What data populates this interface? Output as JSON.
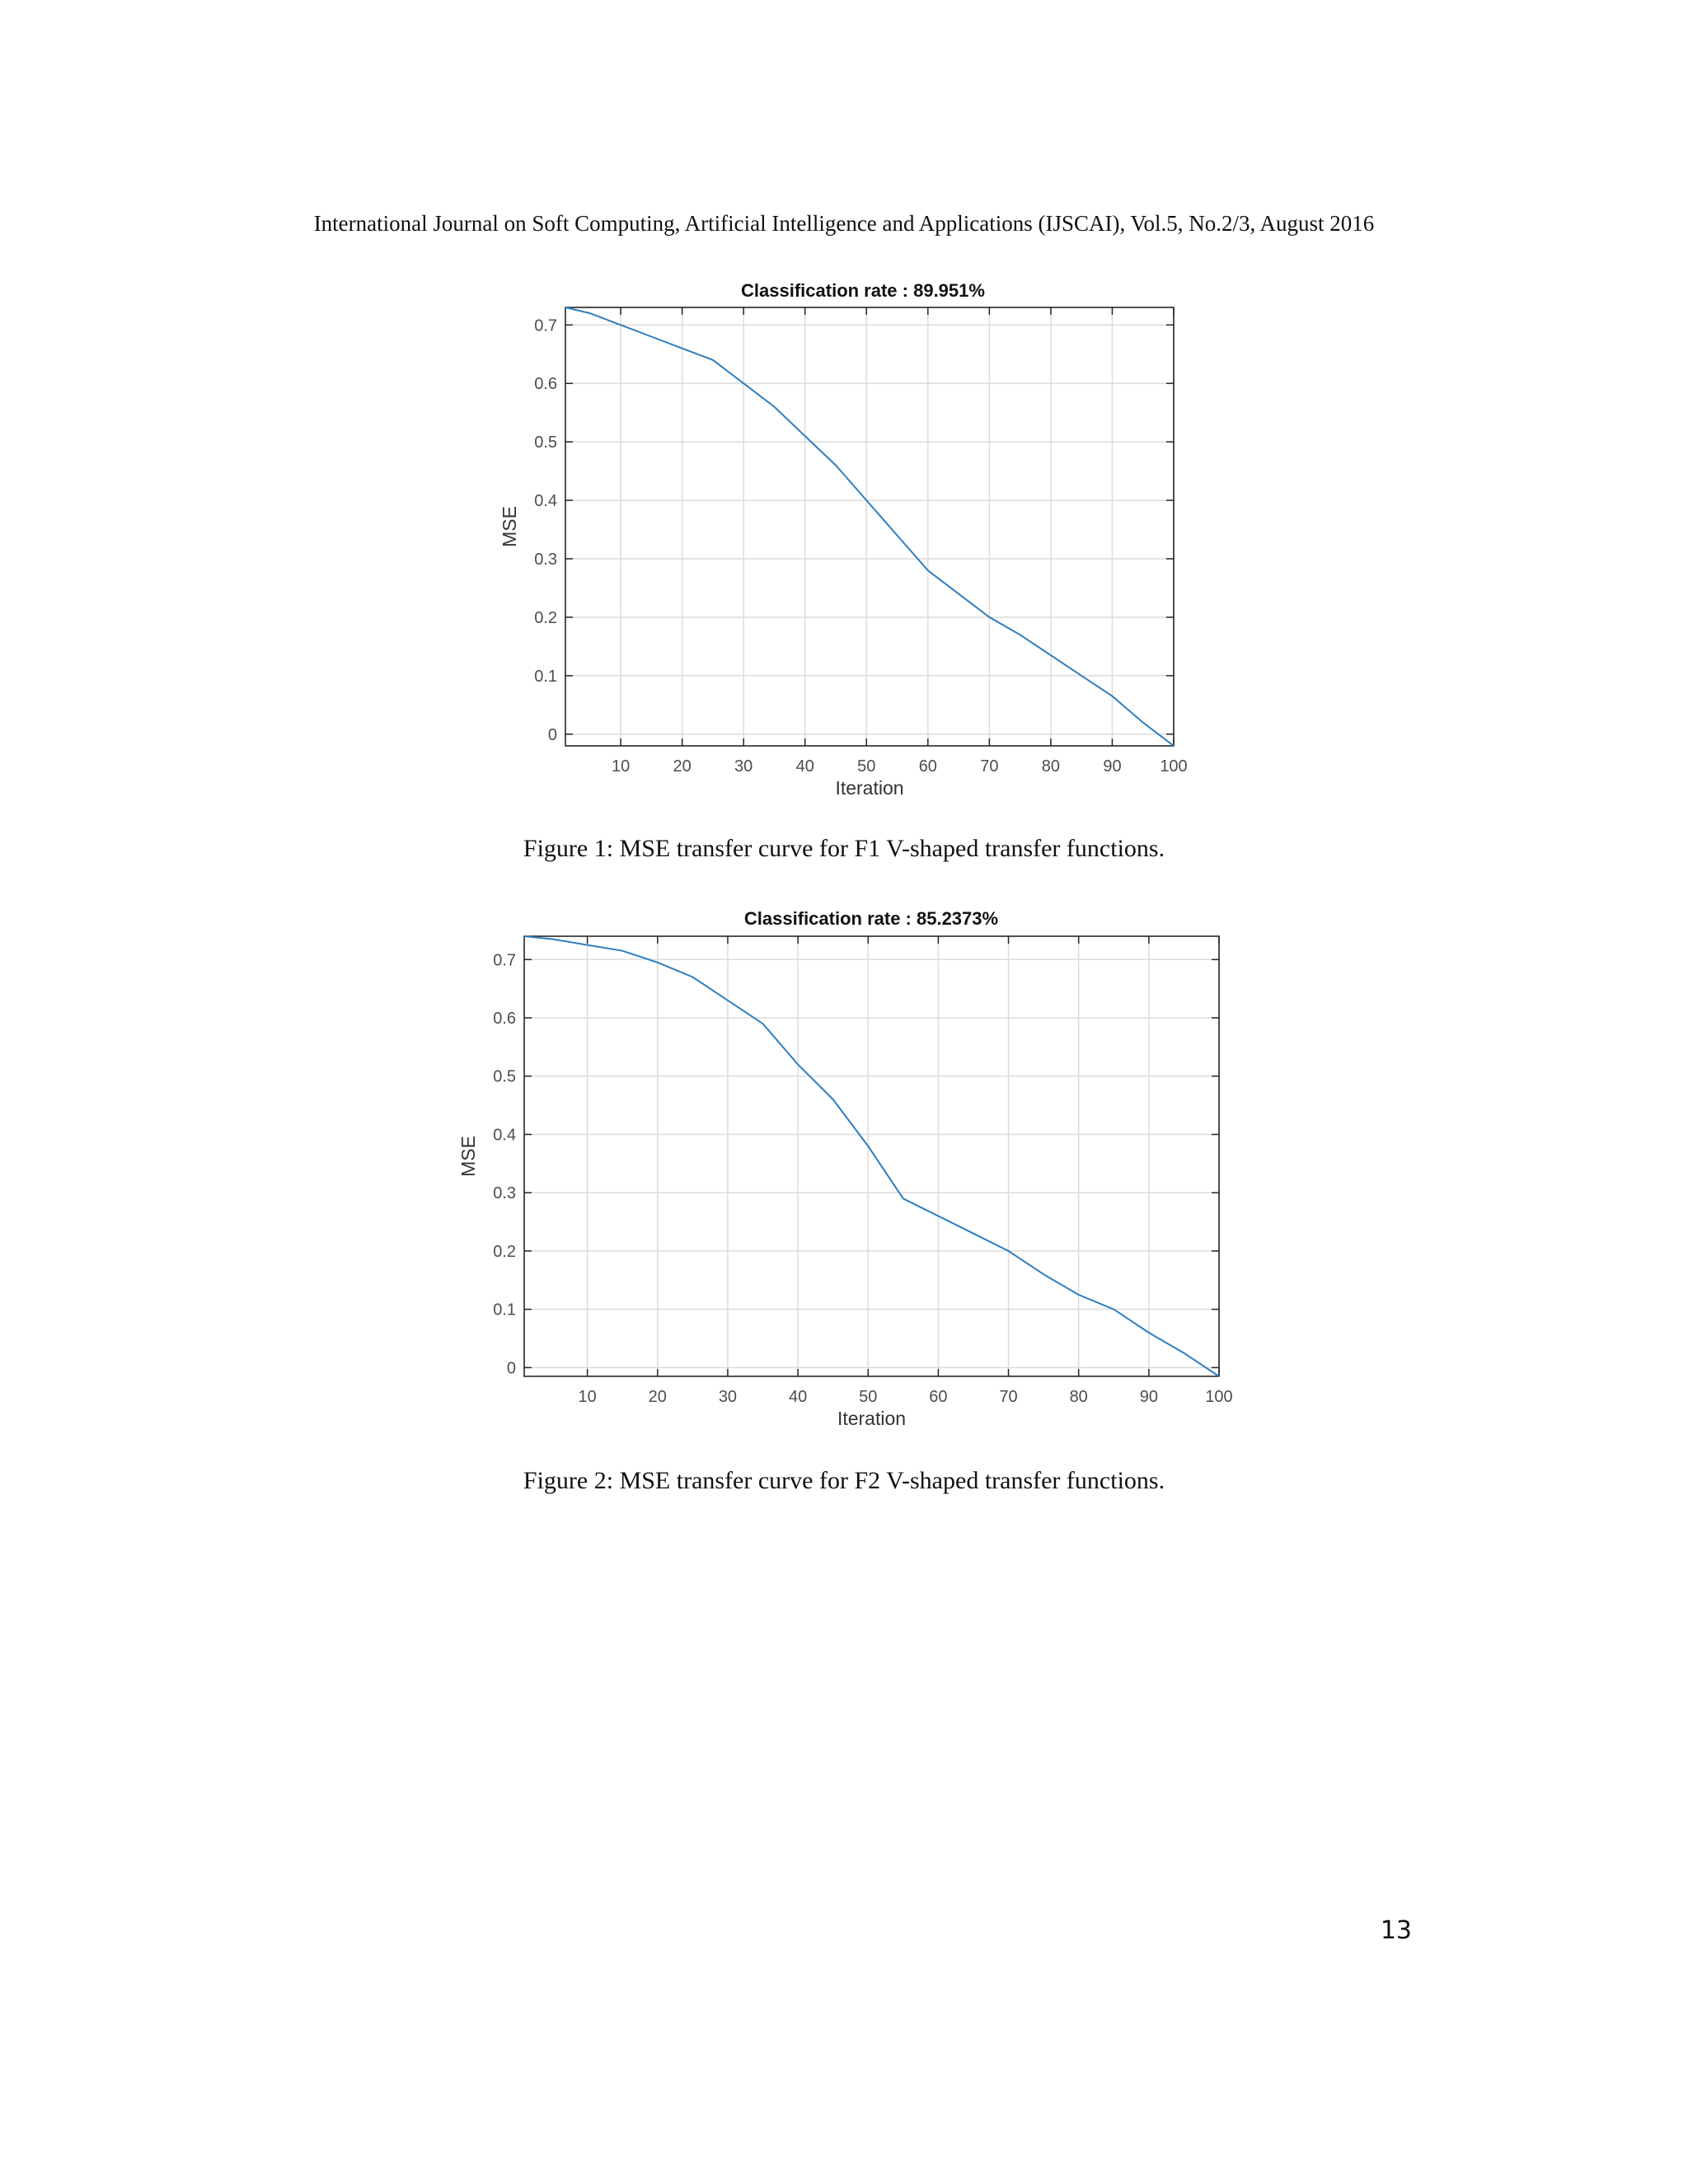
{
  "header": "International Journal on Soft Computing, Artificial Intelligence and Applications (IJSCAI), Vol.5, No.2/3, August 2016",
  "figures": [
    {
      "caption": "Figure 1: MSE transfer curve for F1 V-shaped transfer functions."
    },
    {
      "caption": "Figure 2: MSE transfer curve for F2 V-shaped transfer functions."
    }
  ],
  "page_number": "13",
  "chart_data": [
    {
      "type": "line",
      "title": "Classification rate : 89.951%",
      "xlabel": "Iteration",
      "ylabel": "MSE",
      "xlim": [
        1,
        100
      ],
      "ylim": [
        -0.02,
        0.73
      ],
      "xticks": [
        10,
        20,
        30,
        40,
        50,
        60,
        70,
        80,
        90,
        100
      ],
      "yticks": [
        0,
        0.1,
        0.2,
        0.3,
        0.4,
        0.5,
        0.6,
        0.7
      ],
      "grid": true,
      "color": "#2e7ebf",
      "series": [
        {
          "x": [
            1,
            5,
            10,
            15,
            20,
            25,
            30,
            35,
            40,
            45,
            50,
            55,
            60,
            65,
            70,
            75,
            80,
            85,
            90,
            95,
            100
          ],
          "y": [
            0.73,
            0.72,
            0.7,
            0.68,
            0.66,
            0.64,
            0.6,
            0.56,
            0.51,
            0.46,
            0.4,
            0.34,
            0.28,
            0.24,
            0.2,
            0.17,
            0.135,
            0.1,
            0.065,
            0.02,
            -0.02
          ]
        }
      ]
    },
    {
      "type": "line",
      "title": "Classification rate : 85.2373%",
      "xlabel": "Iteration",
      "ylabel": "MSE",
      "xlim": [
        1,
        100
      ],
      "ylim": [
        -0.015,
        0.74
      ],
      "xticks": [
        10,
        20,
        30,
        40,
        50,
        60,
        70,
        80,
        90,
        100
      ],
      "yticks": [
        0,
        0.1,
        0.2,
        0.3,
        0.4,
        0.5,
        0.6,
        0.7
      ],
      "grid": true,
      "color": "#2e7ebf",
      "series": [
        {
          "x": [
            1,
            5,
            10,
            15,
            20,
            25,
            30,
            35,
            40,
            45,
            50,
            55,
            60,
            65,
            70,
            75,
            80,
            85,
            90,
            95,
            100
          ],
          "y": [
            0.74,
            0.735,
            0.725,
            0.715,
            0.695,
            0.67,
            0.63,
            0.59,
            0.52,
            0.46,
            0.38,
            0.29,
            0.26,
            0.23,
            0.2,
            0.16,
            0.125,
            0.1,
            0.06,
            0.025,
            -0.015
          ]
        }
      ]
    }
  ]
}
